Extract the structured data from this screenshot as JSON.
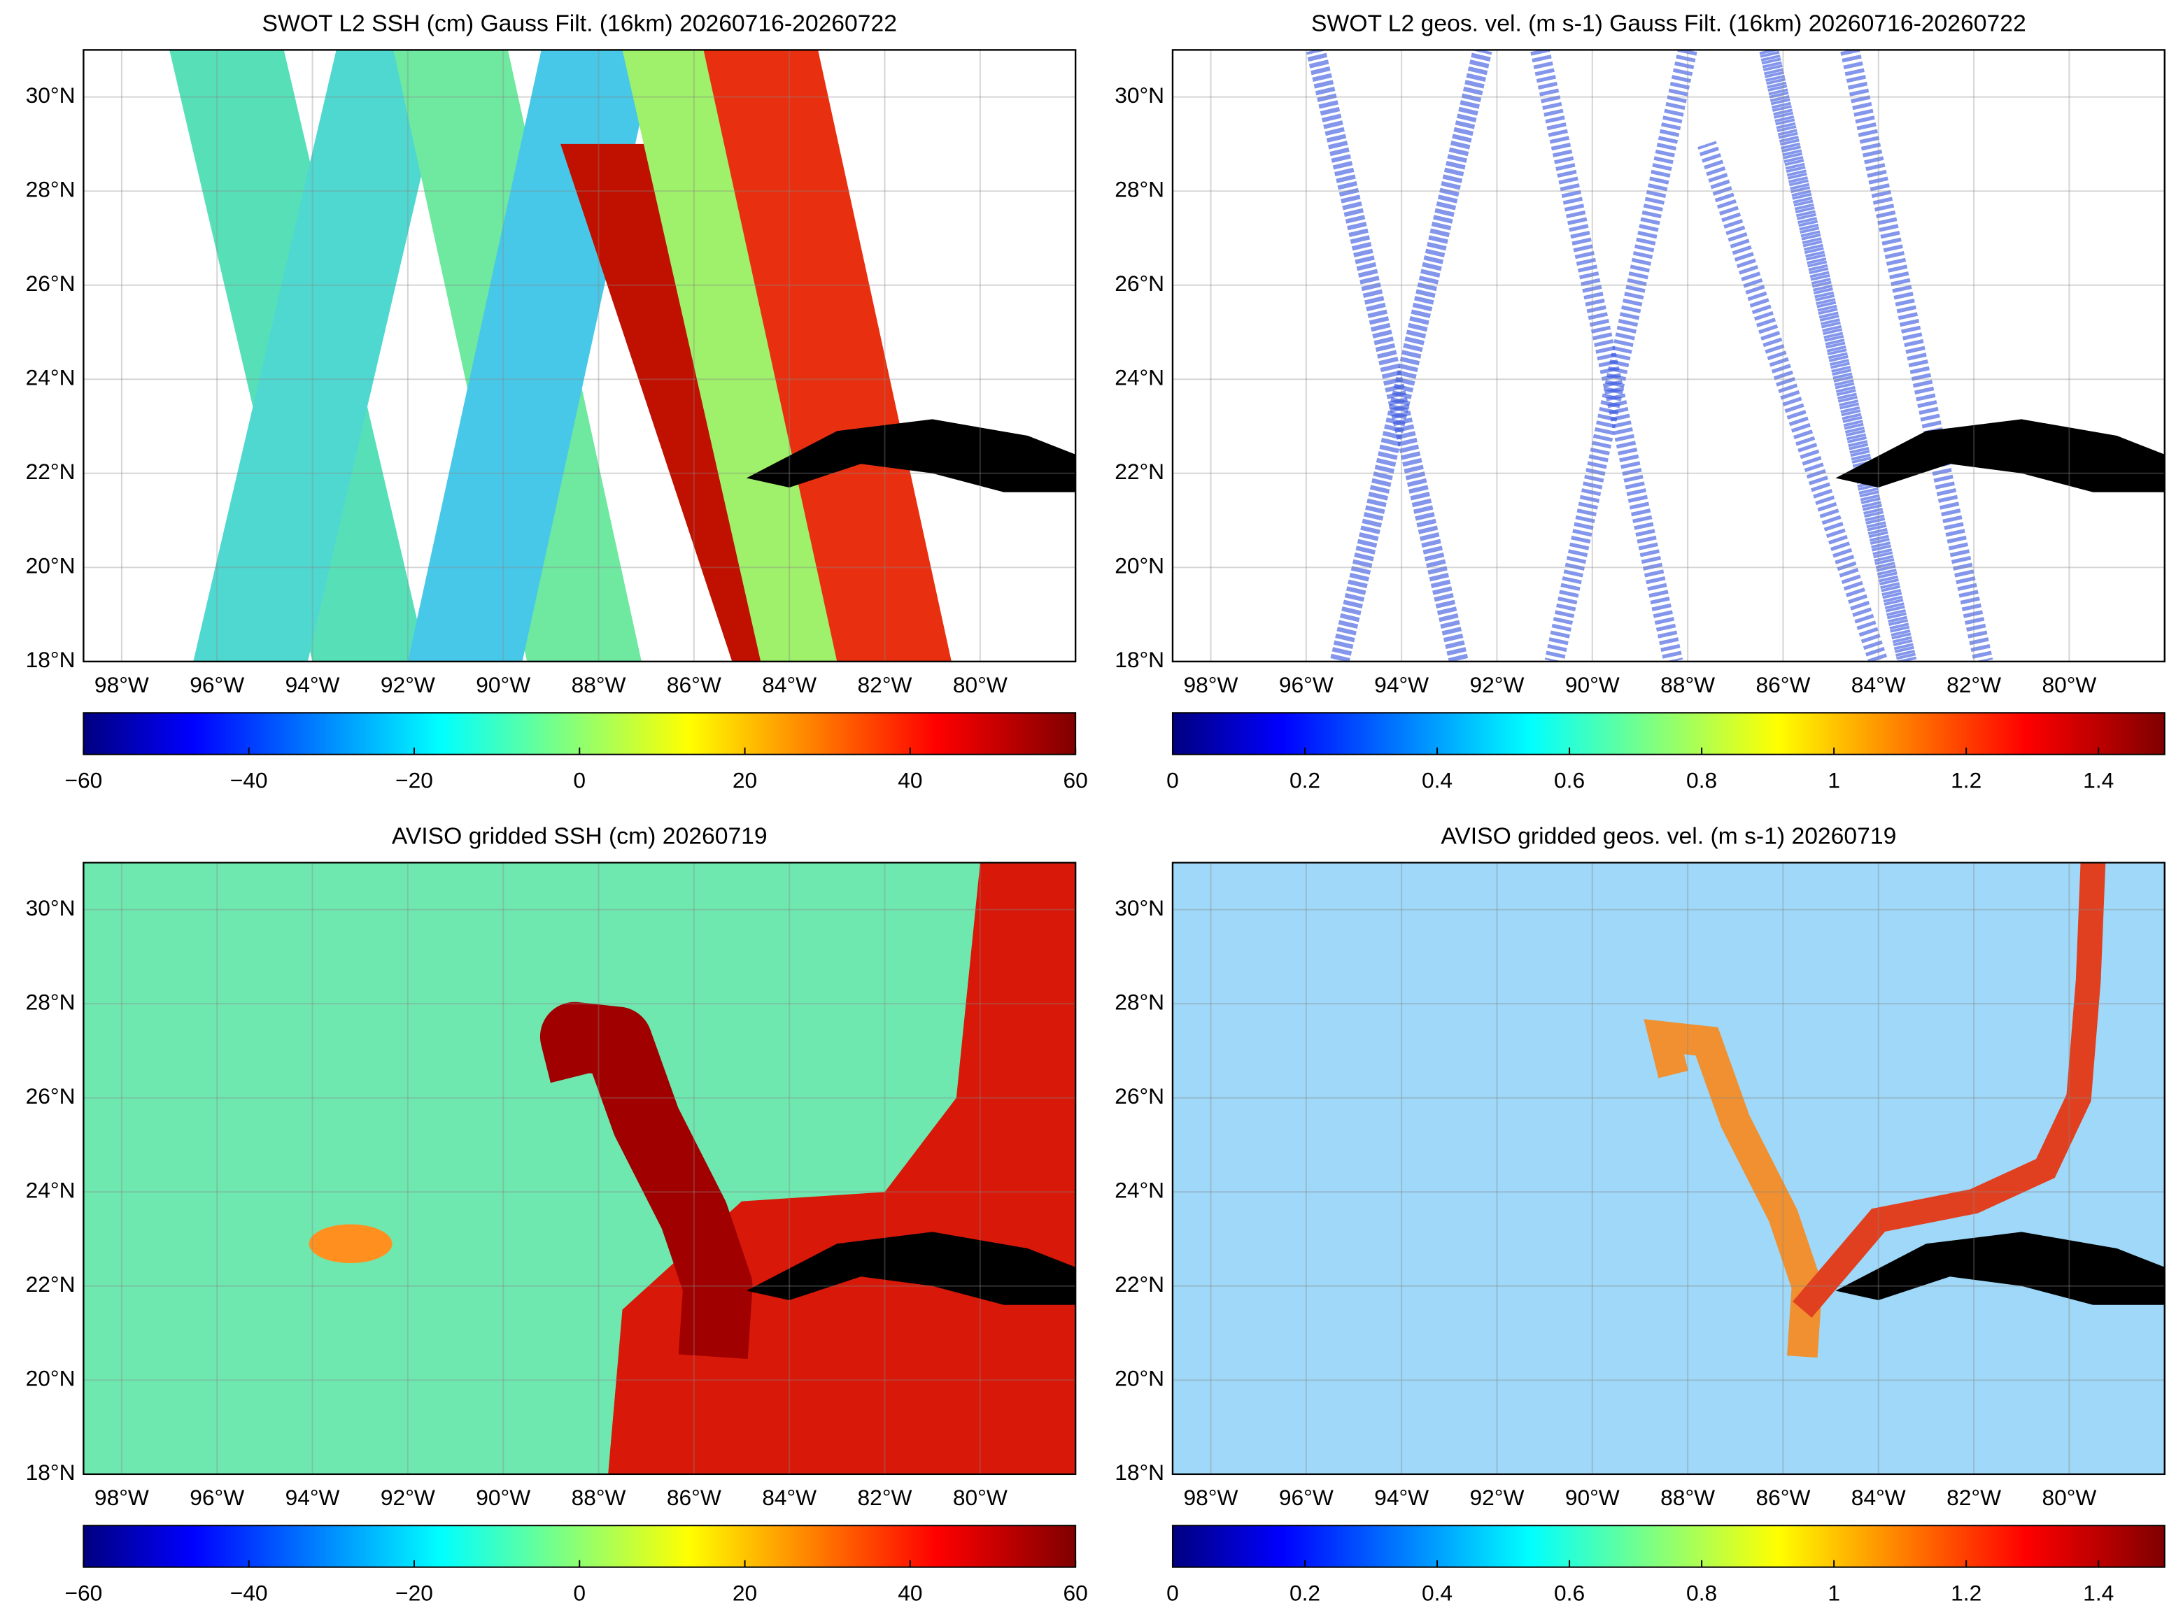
{
  "panels": [
    {
      "title": "SWOT L2 SSH (cm) Gauss Filt. (16km) 20260716-20260722",
      "xlim": [
        -98.8,
        -78
      ],
      "ylim": [
        18,
        31
      ],
      "xticks": [
        {
          "value": -98,
          "label": "98°W"
        },
        {
          "value": -96,
          "label": "96°W"
        },
        {
          "value": -94,
          "label": "94°W"
        },
        {
          "value": -92,
          "label": "92°W"
        },
        {
          "value": -90,
          "label": "90°W"
        },
        {
          "value": -88,
          "label": "88°W"
        },
        {
          "value": -86,
          "label": "86°W"
        },
        {
          "value": -84,
          "label": "84°W"
        },
        {
          "value": -82,
          "label": "82°W"
        },
        {
          "value": -80,
          "label": "80°W"
        }
      ],
      "yticks": [
        {
          "value": 18,
          "label": "18°N"
        },
        {
          "value": 20,
          "label": "20°N"
        },
        {
          "value": 22,
          "label": "22°N"
        },
        {
          "value": 24,
          "label": "24°N"
        },
        {
          "value": 26,
          "label": "26°N"
        },
        {
          "value": 28,
          "label": "28°N"
        },
        {
          "value": 30,
          "label": "30°N"
        }
      ],
      "colorbar": {
        "lim": [
          -60,
          60
        ],
        "ticks": [
          {
            "value": -60,
            "label": "−60"
          },
          {
            "value": -40,
            "label": "−40"
          },
          {
            "value": -20,
            "label": "−20"
          },
          0,
          20,
          40,
          60
        ]
      }
    },
    {
      "title": "SWOT L2 geos. vel. (m s-1) Gauss Filt. (16km) 20260716-20260722",
      "xlim": [
        -98.8,
        -78
      ],
      "ylim": [
        18,
        31
      ],
      "xticks": [
        {
          "value": -98,
          "label": "98°W"
        },
        {
          "value": -96,
          "label": "96°W"
        },
        {
          "value": -94,
          "label": "94°W"
        },
        {
          "value": -92,
          "label": "92°W"
        },
        {
          "value": -90,
          "label": "90°W"
        },
        {
          "value": -88,
          "label": "88°W"
        },
        {
          "value": -86,
          "label": "86°W"
        },
        {
          "value": -84,
          "label": "84°W"
        },
        {
          "value": -82,
          "label": "82°W"
        },
        {
          "value": -80,
          "label": "80°W"
        }
      ],
      "yticks": [
        {
          "value": 18,
          "label": "18°N"
        },
        {
          "value": 20,
          "label": "20°N"
        },
        {
          "value": 22,
          "label": "22°N"
        },
        {
          "value": 24,
          "label": "24°N"
        },
        {
          "value": 26,
          "label": "26°N"
        },
        {
          "value": 28,
          "label": "28°N"
        },
        {
          "value": 30,
          "label": "30°N"
        }
      ],
      "colorbar": {
        "lim": [
          0,
          1.5
        ],
        "ticks": [
          0,
          0.2,
          0.4,
          0.6,
          0.8,
          1,
          1.2,
          1.4
        ]
      }
    },
    {
      "title": "AVISO gridded SSH (cm) 20260719",
      "xlim": [
        -98.8,
        -78
      ],
      "ylim": [
        18,
        31
      ],
      "xticks": [
        {
          "value": -98,
          "label": "98°W"
        },
        {
          "value": -96,
          "label": "96°W"
        },
        {
          "value": -94,
          "label": "94°W"
        },
        {
          "value": -92,
          "label": "92°W"
        },
        {
          "value": -90,
          "label": "90°W"
        },
        {
          "value": -88,
          "label": "88°W"
        },
        {
          "value": -86,
          "label": "86°W"
        },
        {
          "value": -84,
          "label": "84°W"
        },
        {
          "value": -82,
          "label": "82°W"
        },
        {
          "value": -80,
          "label": "80°W"
        }
      ],
      "yticks": [
        {
          "value": 18,
          "label": "18°N"
        },
        {
          "value": 20,
          "label": "20°N"
        },
        {
          "value": 22,
          "label": "22°N"
        },
        {
          "value": 24,
          "label": "24°N"
        },
        {
          "value": 26,
          "label": "26°N"
        },
        {
          "value": 28,
          "label": "28°N"
        },
        {
          "value": 30,
          "label": "30°N"
        }
      ],
      "colorbar": {
        "lim": [
          -60,
          60
        ],
        "ticks": [
          {
            "value": -60,
            "label": "−60"
          },
          {
            "value": -40,
            "label": "−40"
          },
          {
            "value": -20,
            "label": "−20"
          },
          0,
          20,
          40,
          60
        ]
      }
    },
    {
      "title": "AVISO gridded geos. vel. (m s-1)  20260719",
      "xlim": [
        -98.8,
        -78
      ],
      "ylim": [
        18,
        31
      ],
      "xticks": [
        {
          "value": -98,
          "label": "98°W"
        },
        {
          "value": -96,
          "label": "96°W"
        },
        {
          "value": -94,
          "label": "94°W"
        },
        {
          "value": -92,
          "label": "92°W"
        },
        {
          "value": -90,
          "label": "90°W"
        },
        {
          "value": -88,
          "label": "88°W"
        },
        {
          "value": -86,
          "label": "86°W"
        },
        {
          "value": -84,
          "label": "84°W"
        },
        {
          "value": -82,
          "label": "82°W"
        },
        {
          "value": -80,
          "label": "80°W"
        }
      ],
      "yticks": [
        {
          "value": 18,
          "label": "18°N"
        },
        {
          "value": 20,
          "label": "20°N"
        },
        {
          "value": 22,
          "label": "22°N"
        },
        {
          "value": 24,
          "label": "24°N"
        },
        {
          "value": 26,
          "label": "26°N"
        },
        {
          "value": 28,
          "label": "28°N"
        },
        {
          "value": 30,
          "label": "30°N"
        }
      ],
      "colorbar": {
        "lim": [
          0,
          1.5
        ],
        "ticks": [
          0,
          0.2,
          0.4,
          0.6,
          0.8,
          1,
          1.2,
          1.4
        ]
      }
    }
  ]
}
